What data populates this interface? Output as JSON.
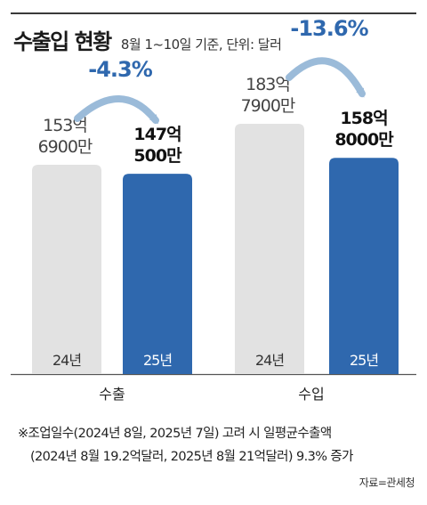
{
  "title": "수출입 현황",
  "subtitle": "8월 1~10일 기준, 단위: 달러",
  "chart_data": [
    {
      "type": "bar",
      "group": "수출",
      "categories": [
        "24년",
        "25년"
      ],
      "values": [
        15369000000,
        14705000000
      ],
      "value_labels": [
        [
          "153억",
          "6900만"
        ],
        [
          "147억",
          "500만"
        ]
      ],
      "change_label": "-4.3%",
      "colors": [
        "#e2e2e2",
        "#2f68ae"
      ]
    },
    {
      "type": "bar",
      "group": "수입",
      "categories": [
        "24년",
        "25년"
      ],
      "values": [
        18379000000,
        15880000000
      ],
      "value_labels": [
        [
          "183억",
          "7900만"
        ],
        [
          "158억",
          "8000만"
        ]
      ],
      "change_label": "-13.6%",
      "colors": [
        "#e2e2e2",
        "#2f68ae"
      ]
    }
  ],
  "footnote_line1": "※조업일수(2024년 8일, 2025년 7일) 고려 시 일평균수출액",
  "footnote_line2": "(2024년 8월 19.2억달러, 2025년 8월 21억달러) 9.3% 증가",
  "source": "자료=관세청",
  "colors": {
    "accent": "#2f68ae",
    "gray_bar": "#e2e2e2",
    "change_text": "#2f68ae",
    "arrow": "#9bbbd9",
    "axis": "#555555"
  }
}
